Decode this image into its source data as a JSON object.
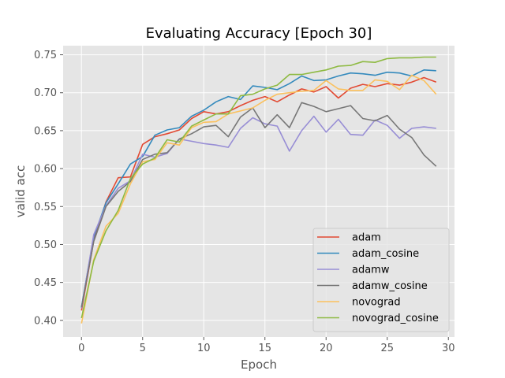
{
  "chart_data": {
    "type": "line",
    "title": "Evaluating Accuracy [Epoch 30]",
    "xlabel": "Epoch",
    "ylabel": "valid acc",
    "xlim": [
      -1.5,
      30.5
    ],
    "ylim": [
      0.378,
      0.762
    ],
    "xticks": [
      0,
      5,
      10,
      15,
      20,
      25,
      30
    ],
    "yticks": [
      0.4,
      0.45,
      0.5,
      0.55,
      0.6,
      0.65,
      0.7,
      0.75
    ],
    "grid": true,
    "legend_position": "lower-right",
    "x": [
      0,
      1,
      2,
      3,
      4,
      5,
      6,
      7,
      8,
      9,
      10,
      11,
      12,
      13,
      14,
      15,
      16,
      17,
      18,
      19,
      20,
      21,
      22,
      23,
      24,
      25,
      26,
      27,
      28,
      29
    ],
    "series": [
      {
        "name": "adam",
        "color": "#E24A33",
        "values": [
          0.413,
          0.505,
          0.556,
          0.588,
          0.589,
          0.632,
          0.642,
          0.646,
          0.651,
          0.666,
          0.675,
          0.672,
          0.675,
          0.683,
          0.69,
          0.695,
          0.688,
          0.697,
          0.705,
          0.701,
          0.708,
          0.693,
          0.706,
          0.711,
          0.708,
          0.712,
          0.71,
          0.714,
          0.72,
          0.714
        ]
      },
      {
        "name": "adam_cosine",
        "color": "#348ABD",
        "values": [
          0.418,
          0.51,
          0.555,
          0.58,
          0.606,
          0.616,
          0.644,
          0.651,
          0.654,
          0.669,
          0.677,
          0.688,
          0.695,
          0.691,
          0.709,
          0.707,
          0.704,
          0.712,
          0.722,
          0.716,
          0.717,
          0.722,
          0.726,
          0.725,
          0.723,
          0.727,
          0.726,
          0.722,
          0.73,
          0.729
        ]
      },
      {
        "name": "adamw",
        "color": "#988ED5",
        "values": [
          0.416,
          0.513,
          0.551,
          0.574,
          0.584,
          0.619,
          0.615,
          0.62,
          0.639,
          0.636,
          0.633,
          0.631,
          0.628,
          0.653,
          0.667,
          0.659,
          0.656,
          0.623,
          0.65,
          0.669,
          0.648,
          0.665,
          0.645,
          0.644,
          0.664,
          0.657,
          0.64,
          0.653,
          0.655,
          0.653
        ]
      },
      {
        "name": "adamw_cosine",
        "color": "#777777",
        "values": [
          0.417,
          0.504,
          0.55,
          0.57,
          0.583,
          0.612,
          0.619,
          0.621,
          0.639,
          0.646,
          0.655,
          0.657,
          0.642,
          0.668,
          0.68,
          0.654,
          0.671,
          0.654,
          0.687,
          0.682,
          0.675,
          0.679,
          0.683,
          0.666,
          0.663,
          0.67,
          0.652,
          0.641,
          0.618,
          0.603
        ]
      },
      {
        "name": "novograd",
        "color": "#FBC15E",
        "values": [
          0.396,
          0.48,
          0.524,
          0.541,
          0.58,
          0.609,
          0.612,
          0.634,
          0.631,
          0.654,
          0.661,
          0.662,
          0.672,
          0.676,
          0.68,
          0.69,
          0.698,
          0.7,
          0.702,
          0.703,
          0.716,
          0.705,
          0.703,
          0.703,
          0.717,
          0.715,
          0.704,
          0.723,
          0.716,
          0.698
        ]
      },
      {
        "name": "novograd_cosine",
        "color": "#8EBA42",
        "values": [
          0.403,
          0.478,
          0.518,
          0.545,
          0.587,
          0.606,
          0.614,
          0.638,
          0.635,
          0.656,
          0.664,
          0.672,
          0.672,
          0.696,
          0.698,
          0.705,
          0.71,
          0.724,
          0.724,
          0.727,
          0.73,
          0.735,
          0.736,
          0.741,
          0.74,
          0.745,
          0.746,
          0.746,
          0.747,
          0.747
        ]
      }
    ]
  }
}
